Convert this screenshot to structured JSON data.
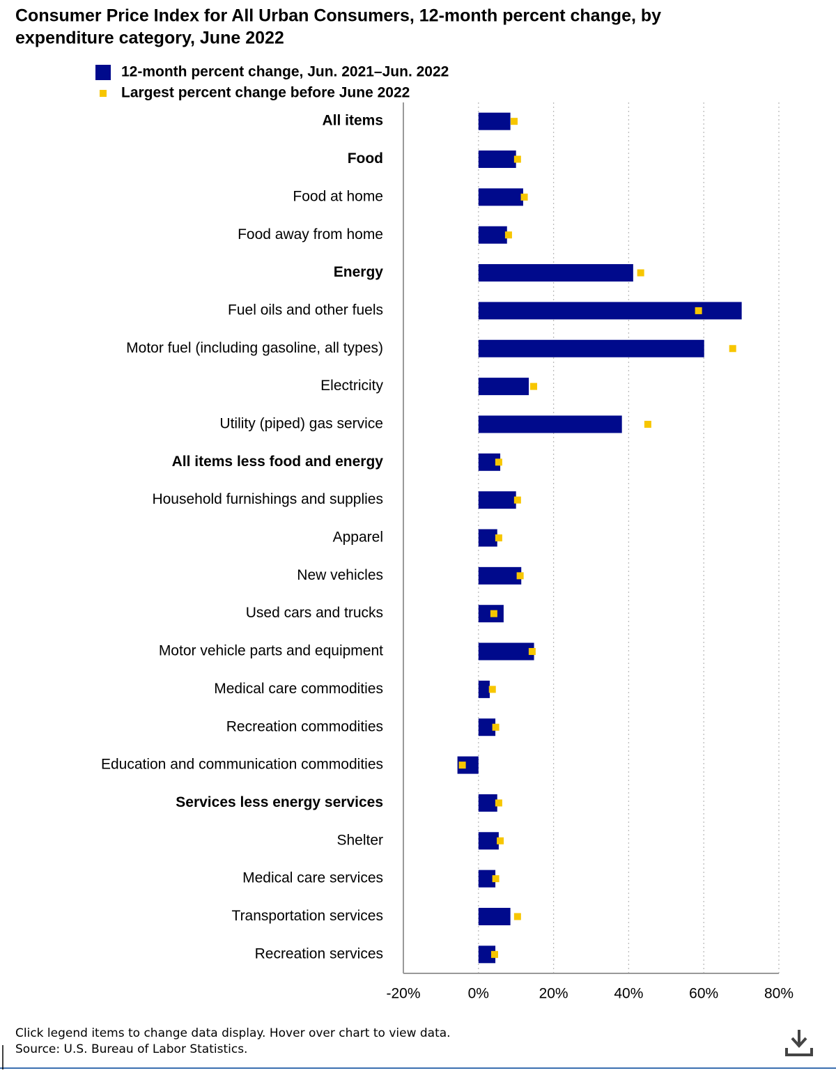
{
  "chart_data": {
    "type": "bar",
    "orientation": "horizontal",
    "title": "Consumer Price Index for All Urban Consumers, 12-month percent change, by expenditure category, June 2022",
    "categories": [
      "All items",
      "Food",
      "Food at home",
      "Food away from home",
      "Energy",
      "Fuel oils and other fuels",
      "Motor fuel (including gasoline, all types)",
      "Electricity",
      "Utility (piped) gas service",
      "All items less food and energy",
      "Household furnishings and supplies",
      "Apparel",
      "New vehicles",
      "Used cars and trucks",
      "Motor vehicle parts and equipment",
      "Medical care commodities",
      "Recreation commodities",
      "Education and communication commodities",
      "Services less energy services",
      "Shelter",
      "Medical care services",
      "Transportation services",
      "Recreation services"
    ],
    "category_bold": [
      true,
      true,
      false,
      false,
      true,
      false,
      false,
      false,
      false,
      true,
      false,
      false,
      false,
      false,
      false,
      false,
      false,
      false,
      true,
      false,
      false,
      false,
      false
    ],
    "series": [
      {
        "name": "12-month percent change, Jun. 2021–Jun. 2022",
        "color": "#000a8c",
        "mark": "bar",
        "values": [
          8.5,
          10.0,
          11.9,
          7.6,
          41.2,
          70.1,
          60.1,
          13.4,
          38.2,
          5.8,
          10.0,
          5.0,
          11.4,
          6.7,
          14.8,
          3.0,
          4.5,
          -5.6,
          5.0,
          5.4,
          4.5,
          8.5,
          4.5
        ]
      },
      {
        "name": "Largest percent change before June 2022",
        "color": "#f7c600",
        "mark": "square",
        "values": [
          9.5,
          10.4,
          12.2,
          8.0,
          43.2,
          58.6,
          67.7,
          14.7,
          45.1,
          5.4,
          10.4,
          5.4,
          11.1,
          4.1,
          14.3,
          3.7,
          4.6,
          -4.3,
          5.4,
          5.8,
          4.6,
          10.4,
          4.3
        ]
      }
    ],
    "xlim": [
      -20,
      80
    ],
    "xticks": [
      {
        "value": -20,
        "label": "-20%"
      },
      {
        "value": 0,
        "label": "0%"
      },
      {
        "value": 20,
        "label": "20%"
      },
      {
        "value": 40,
        "label": "40%"
      },
      {
        "value": 60,
        "label": "60%"
      },
      {
        "value": 80,
        "label": "80%"
      }
    ],
    "grid": true,
    "notes": [
      "Click legend items to change data display. Hover over chart to view data.",
      "Source: U.S. Bureau of Labor Statistics."
    ]
  }
}
